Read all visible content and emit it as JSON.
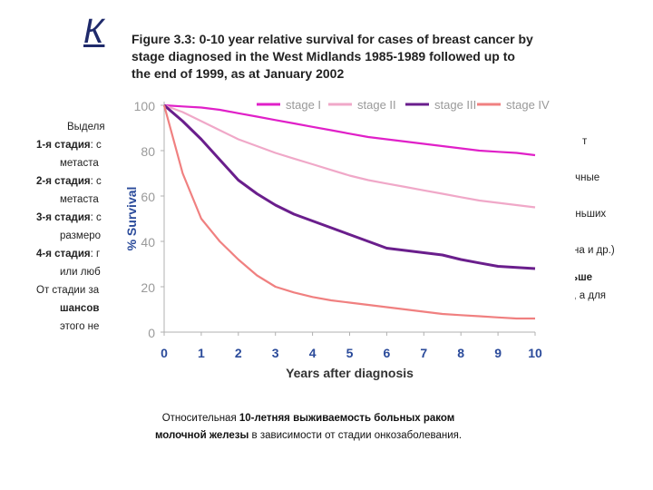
{
  "slide": {
    "title": "К",
    "title_tail": ",",
    "body_lines": [
      {
        "prefix": "",
        "text": "Выделя"
      },
      {
        "prefix": "1-я стадия",
        "text": ": с"
      },
      {
        "prefix": "",
        "text": "метаста"
      },
      {
        "prefix": "2-я стадия",
        "text": ": с"
      },
      {
        "prefix": "",
        "text": "метаста"
      },
      {
        "prefix": "3-я стадия",
        "text": ": с"
      },
      {
        "prefix": "",
        "text": "размеро"
      },
      {
        "prefix": "4-я стадия",
        "text": ": г"
      },
      {
        "prefix": "",
        "text": "или люб"
      },
      {
        "prefix": "",
        "text": "От стадии за"
      },
      {
        "prefix": "шансов",
        "text": ""
      },
      {
        "prefix": "",
        "text": "этого не"
      }
    ],
    "right_fragments": [
      "т",
      "очные",
      "еньших",
      "на и др.)",
      "ьше",
      "е, а для"
    ],
    "caption_part1": "Относительная ",
    "caption_bold1": "10-летняя выживаемость больных раком",
    "caption_bold2": "молочной железы",
    "caption_part2": " в зависимости от стадии онкозаболевания."
  },
  "chart_data": {
    "type": "line",
    "title": "Figure 3.3: 0-10 year relative survival for cases of breast cancer by stage diagnosed in the West Midlands 1985-1989 followed up to the end of 1999, as at January 2002",
    "title_lines": [
      "Figure 3.3: 0-10 year relative survival for cases of breast cancer by",
      "stage diagnosed in the West Midlands 1985-1989 followed up to",
      "the end of 1999, as at January 2002"
    ],
    "xlabel": "Years after diagnosis",
    "ylabel": "% Survival",
    "xlim": [
      0,
      10
    ],
    "ylim": [
      0,
      100
    ],
    "xticks": [
      "0",
      "1",
      "2",
      "3",
      "4",
      "5",
      "6",
      "7",
      "8",
      "9",
      "10"
    ],
    "yticks": [
      "0",
      "20",
      "40",
      "60",
      "80",
      "100"
    ],
    "x": [
      0,
      0.5,
      1,
      1.5,
      2,
      2.5,
      3,
      3.5,
      4,
      4.5,
      5,
      5.5,
      6,
      6.5,
      7,
      7.5,
      8,
      8.5,
      9,
      9.5,
      10
    ],
    "series": [
      {
        "name": "stage I",
        "color": "#e020c8",
        "values": [
          100,
          99.5,
          99,
          98,
          96.5,
          95,
          93.5,
          92,
          90.5,
          89,
          87.5,
          86,
          85,
          84,
          83,
          82,
          81,
          80,
          79.5,
          79,
          78
        ]
      },
      {
        "name": "stage II",
        "color": "#f0a8c8",
        "values": [
          100,
          97,
          93,
          89,
          85,
          82,
          79,
          76.5,
          74,
          71.5,
          69,
          67,
          65.5,
          64,
          62.5,
          61,
          59.5,
          58,
          57,
          56,
          55
        ]
      },
      {
        "name": "stage III",
        "color": "#6a1e8c",
        "values": [
          100,
          93,
          85,
          76,
          67,
          61,
          56,
          52,
          49,
          46,
          43,
          40,
          37,
          36,
          35,
          34,
          32,
          30.5,
          29,
          28.5,
          28
        ]
      },
      {
        "name": "stage IV",
        "color": "#f08080",
        "values": [
          100,
          70,
          50,
          40,
          32,
          25,
          20,
          17.5,
          15.5,
          14,
          13,
          12,
          11,
          10,
          9,
          8,
          7.5,
          7,
          6.5,
          6,
          6
        ]
      }
    ],
    "legend_position": "top"
  }
}
